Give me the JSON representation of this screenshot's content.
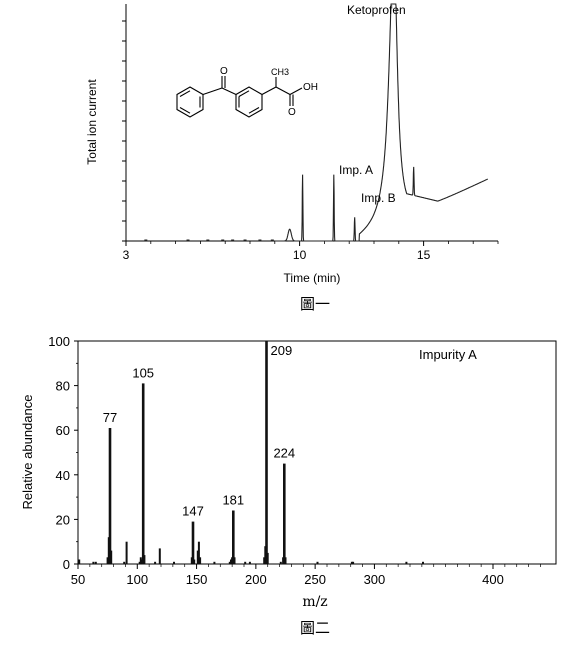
{
  "chart_data": [
    {
      "type": "line",
      "xlabel": "Time (min)",
      "ylabel": "Total ion current",
      "caption": "圖一",
      "xlim": [
        3,
        18
      ],
      "ylim": [
        0,
        100
      ],
      "x_ticks": [
        3,
        10,
        15
      ],
      "peaks": [
        {
          "x": 9.6,
          "y": 5
        },
        {
          "x": 10.1,
          "y": 28,
          "label": ""
        },
        {
          "x": 11.4,
          "y": 28,
          "label": "Imp. A"
        },
        {
          "x": 12.2,
          "y": 10,
          "label": "Imp. B"
        },
        {
          "x": 13.8,
          "y": 120,
          "label": "Ketoprofen"
        }
      ],
      "label_text": {
        "main": "Ketoprofen",
        "impA": "Imp. A",
        "impB": "Imp. B"
      },
      "structure_labels": {
        "o1": "O",
        "ch3": "CH3",
        "oh": "OH",
        "o2": "O"
      }
    },
    {
      "type": "bar",
      "title": "Impurity A",
      "xlabel": "m/z",
      "ylabel": "Relative abundance",
      "caption": "圖二",
      "xlim": [
        50,
        450
      ],
      "ylim": [
        0,
        100
      ],
      "x_ticks": [
        50,
        100,
        150,
        200,
        250,
        300,
        400
      ],
      "y_ticks": [
        0,
        20,
        40,
        60,
        80,
        100
      ],
      "x": [
        51,
        63,
        65,
        75,
        76,
        77,
        78,
        89,
        91,
        102,
        103,
        104,
        105,
        106,
        115,
        119,
        131,
        146,
        147,
        148,
        151,
        152,
        153,
        165,
        178,
        179,
        180,
        181,
        182,
        191,
        195,
        207,
        208,
        209,
        210,
        221,
        223,
        224,
        225,
        252,
        281,
        282,
        327,
        341
      ],
      "values": [
        2,
        1,
        1,
        3,
        12,
        61,
        6,
        1,
        10,
        1,
        3,
        2,
        81,
        4,
        1,
        7,
        1,
        3,
        19,
        2,
        6,
        10,
        3,
        1,
        1,
        2,
        3,
        24,
        3,
        1,
        1,
        3,
        8,
        100,
        5,
        1,
        3,
        45,
        3,
        1,
        1,
        1,
        1,
        1
      ],
      "labels": [
        {
          "x": 77,
          "text": "77"
        },
        {
          "x": 105,
          "text": "105"
        },
        {
          "x": 147,
          "text": "147"
        },
        {
          "x": 181,
          "text": "181"
        },
        {
          "x": 209,
          "text": "209"
        },
        {
          "x": 224,
          "text": "224"
        }
      ]
    }
  ]
}
